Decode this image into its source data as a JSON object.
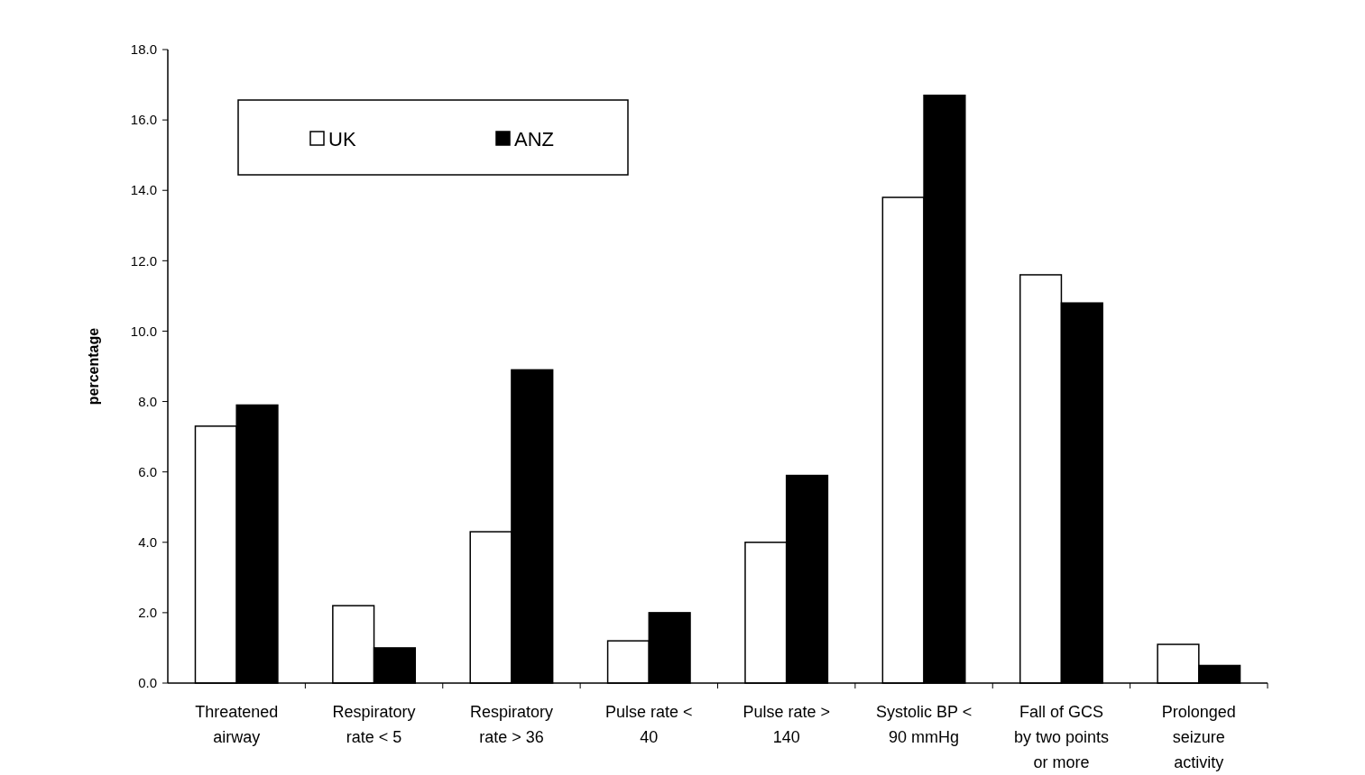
{
  "chart_data": {
    "type": "bar",
    "ylabel": "percentage",
    "categories": [
      "Threatened airway",
      "Respiratory rate < 5",
      "Respiratory rate > 36",
      "Pulse rate < 40",
      "Pulse rate > 140",
      "Systolic BP < 90 mmHg",
      "Fall of GCS by two points or more",
      "Prolonged seizure activity"
    ],
    "series": [
      {
        "name": "UK",
        "color": "#ffffff",
        "values": [
          7.3,
          2.2,
          4.3,
          1.2,
          4.0,
          13.8,
          11.6,
          1.1
        ]
      },
      {
        "name": "ANZ",
        "color": "#000000",
        "values": [
          7.9,
          1.0,
          8.9,
          2.0,
          5.9,
          16.7,
          10.8,
          0.5
        ]
      }
    ],
    "ylim": [
      0,
      18
    ],
    "yticks": [
      {
        "value": 0,
        "label": "0.0"
      },
      {
        "value": 2,
        "label": "2.0"
      },
      {
        "value": 4,
        "label": "4.0"
      },
      {
        "value": 6,
        "label": "6.0"
      },
      {
        "value": 8,
        "label": "8.0"
      },
      {
        "value": 10,
        "label": "10.0"
      },
      {
        "value": 12,
        "label": "12.0"
      },
      {
        "value": 14,
        "label": "14.0"
      },
      {
        "value": 16,
        "label": "16.0"
      },
      {
        "value": 18,
        "label": "18.0"
      }
    ],
    "grid": false,
    "legend": "top left"
  }
}
